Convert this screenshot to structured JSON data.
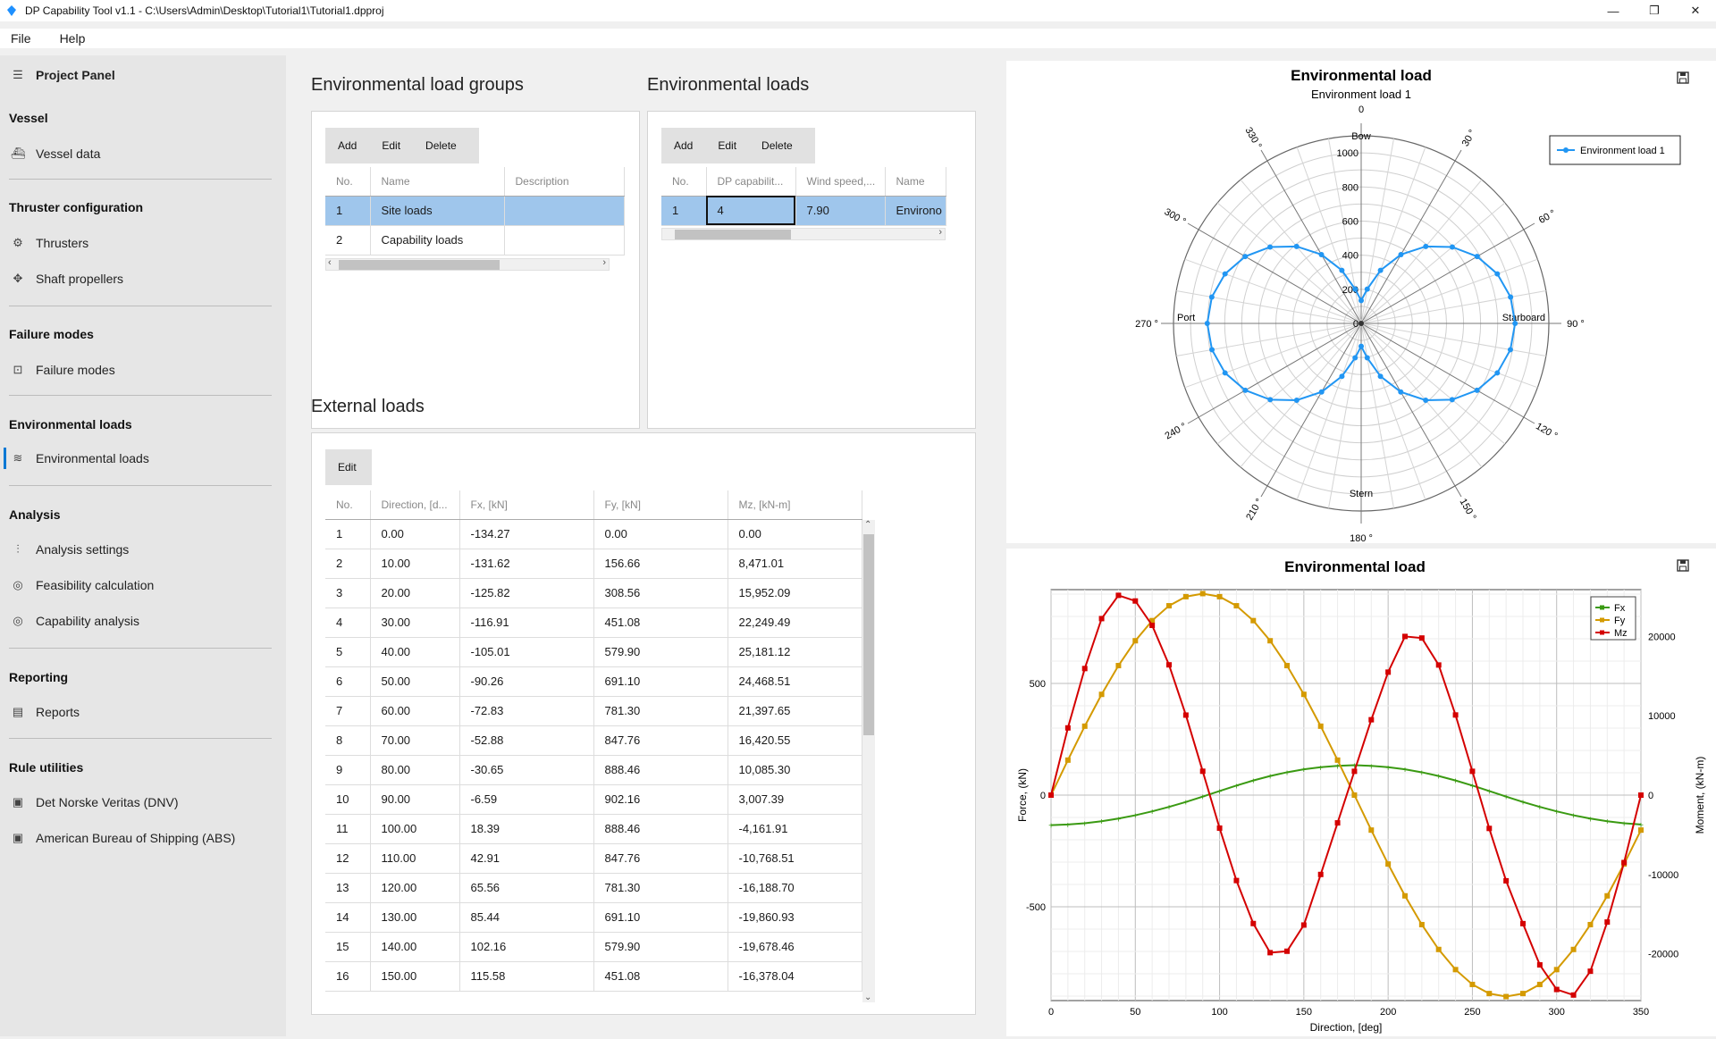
{
  "window": {
    "title": "DP Capability Tool v1.1 - C:\\Users\\Admin\\Desktop\\Tutorial1\\Tutorial1.dpproj",
    "controls": [
      "—",
      "❐",
      "✕"
    ]
  },
  "menu": [
    "File",
    "Help"
  ],
  "sidebar": {
    "panel_title": "Project Panel",
    "sections": [
      {
        "header": "Vessel",
        "items": [
          {
            "label": "Vessel data",
            "icon": "ship-icon"
          }
        ]
      },
      {
        "header": "Thruster configuration",
        "items": [
          {
            "label": "Thrusters",
            "icon": "thruster-icon"
          },
          {
            "label": "Shaft propellers",
            "icon": "propeller-icon"
          }
        ]
      },
      {
        "header": "Failure modes",
        "items": [
          {
            "label": "Failure modes",
            "icon": "failure-modes-icon"
          }
        ]
      },
      {
        "header": "Environmental loads",
        "items": [
          {
            "label": "Environmental loads",
            "icon": "waves-icon"
          }
        ]
      },
      {
        "header": "Analysis",
        "items": [
          {
            "label": "Analysis settings",
            "icon": "sliders-icon"
          },
          {
            "label": "Feasibility calculation",
            "icon": "target-icon"
          },
          {
            "label": "Capability analysis",
            "icon": "target-icon"
          }
        ]
      },
      {
        "header": "Reporting",
        "items": [
          {
            "label": "Reports",
            "icon": "report-icon"
          }
        ]
      },
      {
        "header": "Rule utilities",
        "items": [
          {
            "label": "Det Norske Veritas (DNV)",
            "icon": "book-icon"
          },
          {
            "label": "American Bureau of Shipping (ABS)",
            "icon": "book-icon"
          }
        ]
      }
    ],
    "active_item": "Environmental loads"
  },
  "groups": {
    "title": "Environmental load groups",
    "buttons": [
      "Add",
      "Edit",
      "Delete"
    ],
    "columns": [
      "No.",
      "Name",
      "Description"
    ],
    "rows": [
      [
        "1",
        "Site loads",
        ""
      ],
      [
        "2",
        "Capability loads",
        ""
      ]
    ],
    "selected_row": 0
  },
  "loads": {
    "title": "Environmental loads",
    "buttons": [
      "Add",
      "Edit",
      "Delete"
    ],
    "columns": [
      "No.",
      "DP capabilit...",
      "Wind speed,...",
      "Name"
    ],
    "rows": [
      [
        "1",
        "4",
        "7.90",
        "Environo"
      ]
    ],
    "selected_row": 0
  },
  "external": {
    "title": "External loads",
    "buttons": [
      "Edit"
    ],
    "columns": [
      "No.",
      "Direction, [d...",
      "Fx, [kN]",
      "Fy, [kN]",
      "Mz, [kN-m]"
    ],
    "rows": [
      [
        "1",
        "0.00",
        "-134.27",
        "0.00",
        "0.00"
      ],
      [
        "2",
        "10.00",
        "-131.62",
        "156.66",
        "8,471.01"
      ],
      [
        "3",
        "20.00",
        "-125.82",
        "308.56",
        "15,952.09"
      ],
      [
        "4",
        "30.00",
        "-116.91",
        "451.08",
        "22,249.49"
      ],
      [
        "5",
        "40.00",
        "-105.01",
        "579.90",
        "25,181.12"
      ],
      [
        "6",
        "50.00",
        "-90.26",
        "691.10",
        "24,468.51"
      ],
      [
        "7",
        "60.00",
        "-72.83",
        "781.30",
        "21,397.65"
      ],
      [
        "8",
        "70.00",
        "-52.88",
        "847.76",
        "16,420.55"
      ],
      [
        "9",
        "80.00",
        "-30.65",
        "888.46",
        "10,085.30"
      ],
      [
        "10",
        "90.00",
        "-6.59",
        "902.16",
        "3,007.39"
      ],
      [
        "11",
        "100.00",
        "18.39",
        "888.46",
        "-4,161.91"
      ],
      [
        "12",
        "110.00",
        "42.91",
        "847.76",
        "-10,768.51"
      ],
      [
        "13",
        "120.00",
        "65.56",
        "781.30",
        "-16,188.70"
      ],
      [
        "14",
        "130.00",
        "85.44",
        "691.10",
        "-19,860.93"
      ],
      [
        "15",
        "140.00",
        "102.16",
        "579.90",
        "-19,678.46"
      ],
      [
        "16",
        "150.00",
        "115.58",
        "451.08",
        "-16,378.04"
      ]
    ]
  },
  "chart_data": [
    {
      "type": "polar",
      "title": "Environmental load",
      "subtitle": "Environment load 1",
      "radial_ticks": [
        "0",
        "200",
        "400",
        "600",
        "800",
        "1000"
      ],
      "rmax": 1100,
      "angle_labels": [
        "0",
        "30 °",
        "60 °",
        "90 °",
        "120 °",
        "150 °",
        "180 °",
        "210 °",
        "240 °",
        "270 °",
        "300 °",
        "330 °"
      ],
      "direction_labels": {
        "bow": "Bow",
        "stern": "Stern",
        "port": "Port",
        "starboard": "Starboard"
      },
      "legend": "top-right",
      "color": "#2196f3",
      "series": [
        {
          "name": "Environment load 1",
          "angles": [
            0,
            10,
            20,
            30,
            40,
            50,
            60,
            70,
            80,
            90,
            100,
            110,
            120,
            130,
            140,
            150,
            160,
            170,
            180,
            190,
            200,
            210,
            220,
            230,
            240,
            250,
            260,
            270,
            280,
            290,
            300,
            310,
            320,
            330,
            340,
            350
          ],
          "values": [
            134,
            204,
            331,
            466,
            589,
            697,
            785,
            849,
            889,
            902,
            888,
            849,
            784,
            696,
            588,
            464,
            330,
            205,
            134,
            205,
            330,
            464,
            588,
            696,
            784,
            849,
            888,
            902,
            889,
            849,
            785,
            697,
            589,
            466,
            331,
            204
          ]
        }
      ]
    },
    {
      "type": "line",
      "title": "Environmental load",
      "xlabel": "Direction, [deg]",
      "ylabel": "Force, (kN)",
      "y2label": "Moment, (kN-m)",
      "xlim": [
        0,
        350
      ],
      "ylim": [
        -920,
        920
      ],
      "y2lim": [
        -25900,
        25900
      ],
      "xticks": [
        "0",
        "50",
        "100",
        "150",
        "200",
        "250",
        "300",
        "350"
      ],
      "yticks": [
        "-500",
        "0",
        "500"
      ],
      "y2ticks": [
        "-20000",
        "-10000",
        "0",
        "10000",
        "20000"
      ],
      "grid": true,
      "legend": "top-right",
      "x": [
        0,
        10,
        20,
        30,
        40,
        50,
        60,
        70,
        80,
        90,
        100,
        110,
        120,
        130,
        140,
        150,
        160,
        170,
        180,
        190,
        200,
        210,
        220,
        230,
        240,
        250,
        260,
        270,
        280,
        290,
        300,
        310,
        320,
        330,
        340,
        350
      ],
      "series": [
        {
          "name": "Fx",
          "axis": "left",
          "color": "#3a9a12",
          "values": [
            -134.27,
            -131.62,
            -125.82,
            -116.91,
            -105.01,
            -90.26,
            -72.83,
            -52.88,
            -30.65,
            -6.59,
            18.39,
            42.91,
            65.56,
            85.44,
            102.16,
            115.58,
            125,
            131,
            134,
            131,
            125,
            115.58,
            102.16,
            85.44,
            65.56,
            42.91,
            18.39,
            -6.59,
            -30.65,
            -52.88,
            -72.83,
            -90.26,
            -105.01,
            -116.91,
            -125.82,
            -131.62
          ]
        },
        {
          "name": "Fy",
          "axis": "left",
          "color": "#d49a00",
          "values": [
            0,
            156.66,
            308.56,
            451.08,
            579.9,
            691.1,
            781.3,
            847.76,
            888.46,
            902.16,
            888.46,
            847.76,
            781.3,
            691.1,
            579.9,
            451.08,
            308.56,
            156.66,
            0,
            -156.66,
            -308.56,
            -451.08,
            -579.9,
            -691.1,
            -781.3,
            -847.76,
            -888.46,
            -902.16,
            -888.46,
            -847.76,
            -781.3,
            -691.1,
            -579.9,
            -451.08,
            -308.56,
            -156.66
          ]
        },
        {
          "name": "Mz",
          "axis": "right",
          "color": "#d40000",
          "values": [
            0,
            8471.01,
            15952.09,
            22249.49,
            25181.12,
            24468.51,
            21397.65,
            16420.55,
            10085.3,
            3007.39,
            -4161.91,
            -10768.51,
            -16188.7,
            -19860.93,
            -19678.46,
            -16378.04,
            -10000,
            -3500,
            3000,
            9500,
            15500,
            20000,
            19800,
            16400,
            10100,
            3000,
            -4200,
            -10800,
            -16200,
            -21400,
            -24500,
            -25200,
            -22200,
            -16000,
            -8500,
            0
          ]
        }
      ]
    }
  ]
}
